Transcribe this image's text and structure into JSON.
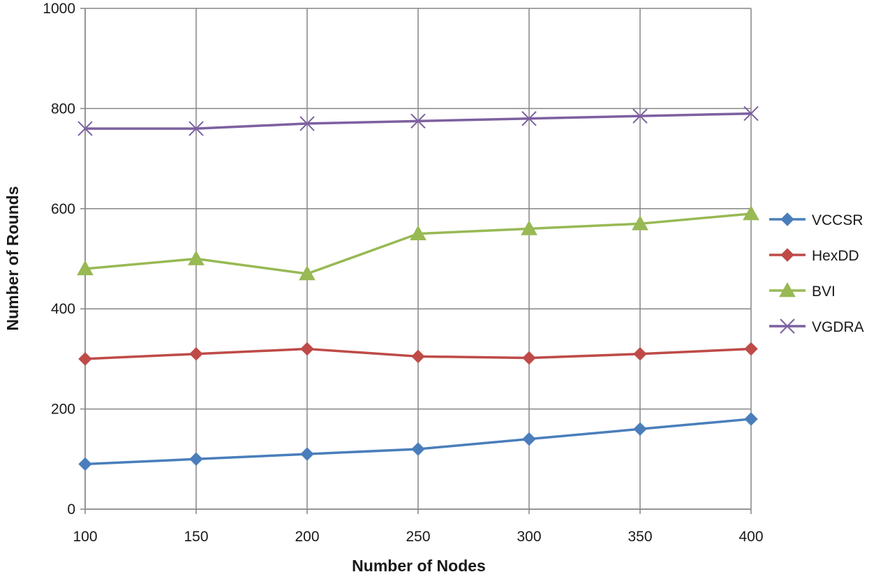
{
  "chart_data": {
    "type": "line",
    "title": "",
    "xlabel": "Number of Nodes",
    "ylabel": "Number of Rounds",
    "x": [
      100,
      150,
      200,
      250,
      300,
      350,
      400
    ],
    "xlim": [
      100,
      400
    ],
    "ylim": [
      0,
      1000
    ],
    "yticks": [
      0,
      200,
      400,
      600,
      800,
      1000
    ],
    "grid": true,
    "legend_position": "right",
    "series": [
      {
        "name": "VCCSR",
        "color": "#4a7ebb",
        "marker": "diamond",
        "values": [
          90,
          100,
          110,
          120,
          140,
          160,
          180
        ]
      },
      {
        "name": "HexDD",
        "color": "#be4b48",
        "marker": "diamond",
        "values": [
          300,
          310,
          320,
          305,
          302,
          310,
          320
        ]
      },
      {
        "name": "BVI",
        "color": "#98b954",
        "marker": "triangle",
        "values": [
          480,
          500,
          470,
          550,
          560,
          570,
          590
        ]
      },
      {
        "name": "VGDRA",
        "color": "#7d60a0",
        "marker": "x",
        "values": [
          760,
          760,
          770,
          775,
          780,
          785,
          790
        ]
      }
    ]
  }
}
